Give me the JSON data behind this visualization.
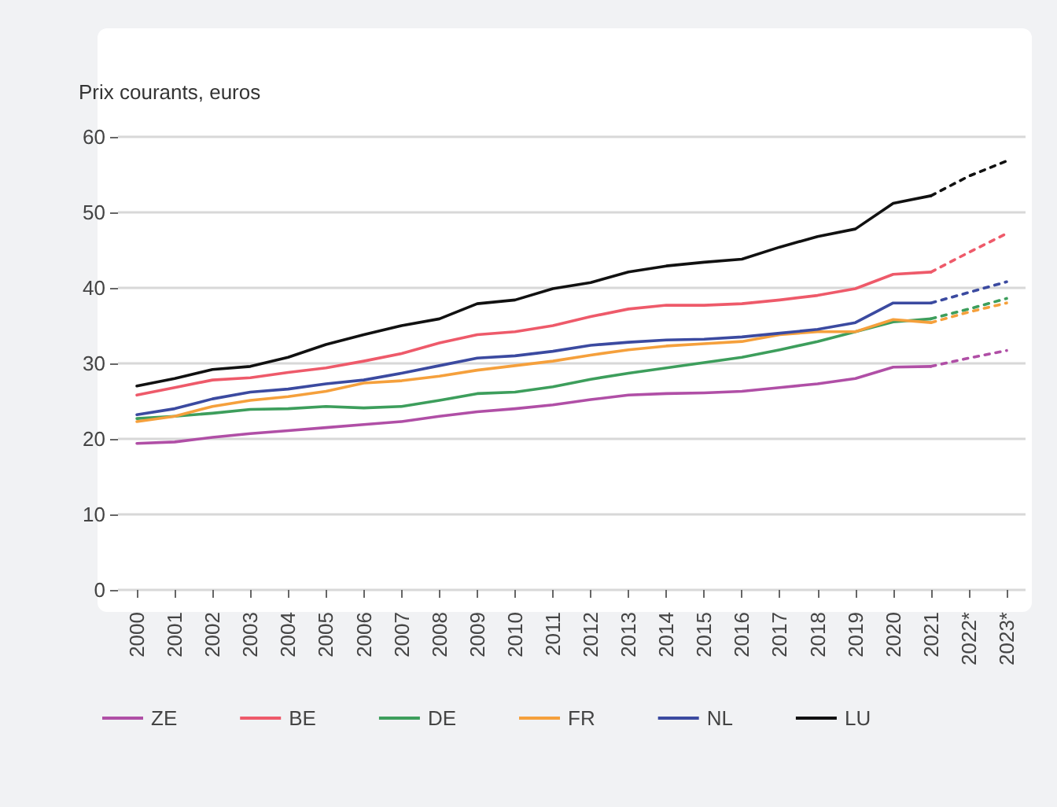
{
  "chart_data": {
    "type": "line",
    "ylabel": "Prix courants, euros",
    "categories": [
      "2000",
      "2001",
      "2002",
      "2003",
      "2004",
      "2005",
      "2006",
      "2007",
      "2008",
      "2009",
      "2010",
      "2011",
      "2012",
      "2013",
      "2014",
      "2015",
      "2016",
      "2017",
      "2018",
      "2019",
      "2020",
      "2021",
      "2022*",
      "2023*"
    ],
    "ylim": [
      0,
      60
    ],
    "yticks": [
      0,
      10,
      20,
      30,
      40,
      50,
      60
    ],
    "grid": "y",
    "legend": "bottom left",
    "marker": "none",
    "series": [
      {
        "name": "ZE",
        "color": "#b04fa6",
        "line_style": "solid",
        "values": [
          19.4,
          19.6,
          20.2,
          20.7,
          21.1,
          21.5,
          21.9,
          22.3,
          23.0,
          23.6,
          24.0,
          24.5,
          25.2,
          25.8,
          26.0,
          26.1,
          26.3,
          26.8,
          27.3,
          28.0,
          29.5,
          29.6,
          null,
          null
        ]
      },
      {
        "name": "BE",
        "color": "#ee5a6a",
        "line_style": "solid",
        "values": [
          25.8,
          26.8,
          27.8,
          28.1,
          28.8,
          29.4,
          30.3,
          31.3,
          32.7,
          33.8,
          34.2,
          35.0,
          36.2,
          37.2,
          37.7,
          37.7,
          37.9,
          38.4,
          39.0,
          39.9,
          41.8,
          42.1,
          null,
          null
        ]
      },
      {
        "name": "DE",
        "color": "#3d9e5c",
        "line_style": "solid",
        "values": [
          22.7,
          23.0,
          23.4,
          23.9,
          24.0,
          24.3,
          24.1,
          24.3,
          25.1,
          26.0,
          26.2,
          26.9,
          27.9,
          28.7,
          29.4,
          30.1,
          30.8,
          31.8,
          32.9,
          34.2,
          35.5,
          35.9,
          null,
          null
        ]
      },
      {
        "name": "FR",
        "color": "#f5a03c",
        "line_style": "solid",
        "values": [
          22.3,
          23.0,
          24.3,
          25.1,
          25.6,
          26.3,
          27.4,
          27.7,
          28.3,
          29.1,
          29.7,
          30.3,
          31.1,
          31.8,
          32.3,
          32.6,
          32.9,
          33.8,
          34.2,
          34.2,
          35.8,
          35.4,
          null,
          null
        ]
      },
      {
        "name": "NL",
        "color": "#3b4aa0",
        "line_style": "solid",
        "values": [
          23.2,
          24.0,
          25.3,
          26.2,
          26.6,
          27.3,
          27.8,
          28.7,
          29.7,
          30.7,
          31.0,
          31.6,
          32.4,
          32.8,
          33.1,
          33.2,
          33.5,
          34.0,
          34.5,
          35.4,
          38.0,
          38.0,
          null,
          null
        ]
      },
      {
        "name": "LU",
        "color": "#111111",
        "line_style": "solid",
        "values": [
          27.0,
          28.0,
          29.2,
          29.6,
          30.8,
          32.5,
          33.8,
          35.0,
          35.9,
          37.9,
          38.4,
          39.9,
          40.7,
          42.1,
          42.9,
          43.4,
          43.8,
          45.4,
          46.8,
          47.8,
          51.2,
          52.2,
          null,
          null
        ]
      },
      {
        "color": "#b04fa6",
        "line_style": "dotted",
        "values": [
          null,
          null,
          null,
          null,
          null,
          null,
          null,
          null,
          null,
          null,
          null,
          null,
          null,
          null,
          null,
          null,
          null,
          null,
          null,
          null,
          null,
          29.6,
          30.7,
          31.7
        ]
      },
      {
        "color": "#ee5a6a",
        "line_style": "dotted",
        "values": [
          null,
          null,
          null,
          null,
          null,
          null,
          null,
          null,
          null,
          null,
          null,
          null,
          null,
          null,
          null,
          null,
          null,
          null,
          null,
          null,
          null,
          42.1,
          44.7,
          47.2
        ]
      },
      {
        "color": "#3d9e5c",
        "line_style": "dotted",
        "values": [
          null,
          null,
          null,
          null,
          null,
          null,
          null,
          null,
          null,
          null,
          null,
          null,
          null,
          null,
          null,
          null,
          null,
          null,
          null,
          null,
          null,
          35.9,
          37.2,
          38.6
        ]
      },
      {
        "color": "#f5a03c",
        "line_style": "dotted",
        "values": [
          null,
          null,
          null,
          null,
          null,
          null,
          null,
          null,
          null,
          null,
          null,
          null,
          null,
          null,
          null,
          null,
          null,
          null,
          null,
          null,
          null,
          35.4,
          36.8,
          38.0
        ]
      },
      {
        "color": "#3b4aa0",
        "line_style": "dotted",
        "values": [
          null,
          null,
          null,
          null,
          null,
          null,
          null,
          null,
          null,
          null,
          null,
          null,
          null,
          null,
          null,
          null,
          null,
          null,
          null,
          null,
          null,
          38.0,
          39.4,
          40.8
        ]
      },
      {
        "color": "#111111",
        "line_style": "dotted",
        "values": [
          null,
          null,
          null,
          null,
          null,
          null,
          null,
          null,
          null,
          null,
          null,
          null,
          null,
          null,
          null,
          null,
          null,
          null,
          null,
          null,
          null,
          52.2,
          54.8,
          56.8
        ]
      }
    ]
  }
}
